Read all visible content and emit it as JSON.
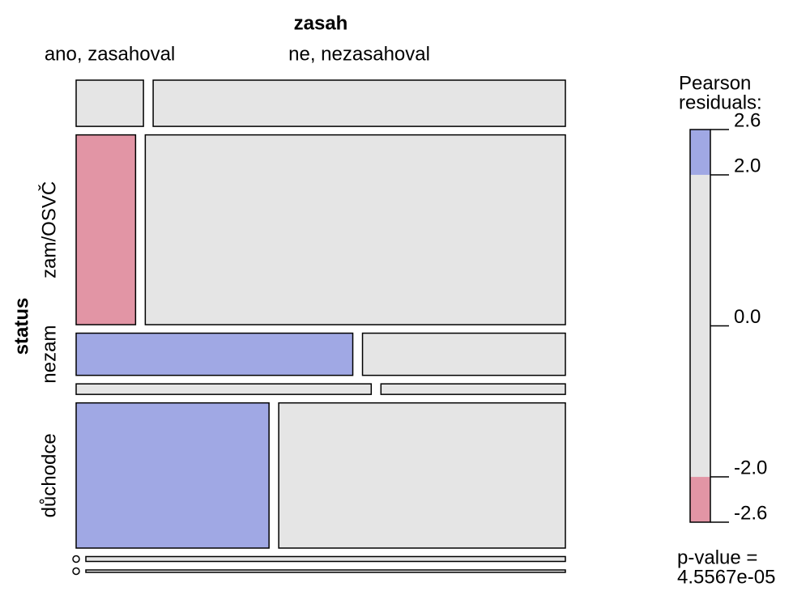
{
  "chart_data": {
    "type": "mosaic",
    "title": "zasah",
    "y_label": "status",
    "rows": [
      null,
      "zam/OSVČ",
      "nezam",
      null,
      "důchodce",
      null,
      null
    ],
    "series": [
      {
        "name": "ano, zasahoval",
        "values": [
          8,
          29,
          30,
          8,
          72,
          0,
          0
        ],
        "colors": [
          "#e5e5e5",
          "#e295a5",
          "#a0a8e4",
          "#e5e5e5",
          "#a0a8e4",
          "#e5e5e5",
          "#e5e5e5"
        ]
      },
      {
        "name": "ne, nezasahoval",
        "values": [
          49,
          205,
          22,
          5,
          107,
          6,
          3
        ],
        "colors": [
          "#e5e5e5",
          "#e5e5e5",
          "#e5e5e5",
          "#e5e5e5",
          "#e5e5e5",
          "#e5e5e5",
          "#e5e5e5"
        ]
      }
    ],
    "legend_title": [
      "Pearson",
      "residuals:"
    ],
    "legend_lim": [
      -2.6,
      2.6
    ],
    "legend_ticks": [
      2.6,
      {
        "value": 2.0,
        "label": "2.0"
      },
      {
        "value": 0.0,
        "label": "0.0"
      },
      {
        "value": -2.0,
        "label": "-2.0"
      },
      -2.6
    ],
    "shading_breaks": [
      -2,
      2
    ],
    "shading_colors": [
      "#e295a5",
      "#e5e5e5",
      "#a0a8e4"
    ],
    "p_value_label": "p-value =",
    "p_value": {
      "value": 4.5567e-05,
      "label": "4.5567e-05"
    }
  }
}
